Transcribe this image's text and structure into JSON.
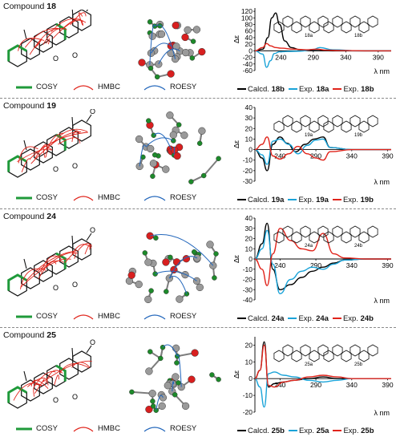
{
  "legend_labels": {
    "cosy": "COSY",
    "hmbc": "HMBC",
    "roesy": "ROESY"
  },
  "colors": {
    "cosy": "#1f9a3a",
    "hmbc": "#e0241b",
    "roesy": "#2266bb",
    "calcd": "#000000",
    "exp_a": "#1aa3d8",
    "exp_b": "#e0241b",
    "atom_c": "#9a9a9a",
    "atom_o": "#d81f1f",
    "atom_h": "#1d8a2a"
  },
  "panels": [
    {
      "prefix": "Compound ",
      "number": "18",
      "cd_legend": [
        {
          "prefix": "Calcd. ",
          "id": "18b"
        },
        {
          "prefix": "Exp. ",
          "id": "18a"
        },
        {
          "prefix": "Exp. ",
          "id": "18b"
        }
      ],
      "inset_labels": [
        "18a",
        "18b"
      ]
    },
    {
      "prefix": "Compound ",
      "number": "19",
      "cd_legend": [
        {
          "prefix": "Calcd. ",
          "id": "19a"
        },
        {
          "prefix": "Exp. ",
          "id": "19a"
        },
        {
          "prefix": "Exp. ",
          "id": "19b"
        }
      ],
      "inset_labels": [
        "19a",
        "19b"
      ]
    },
    {
      "prefix": "Compound ",
      "number": "24",
      "cd_legend": [
        {
          "prefix": "Calcd. ",
          "id": "24a"
        },
        {
          "prefix": "Exp. ",
          "id": "24a"
        },
        {
          "prefix": "Exp. ",
          "id": "24b"
        }
      ],
      "inset_labels": [
        "24a",
        "24b"
      ]
    },
    {
      "prefix": "Compound ",
      "number": "25",
      "cd_legend": [
        {
          "prefix": "Calcd. ",
          "id": "25b"
        },
        {
          "prefix": "Exp. ",
          "id": "25a"
        },
        {
          "prefix": "Exp. ",
          "id": "25b"
        }
      ],
      "inset_labels": [
        "25a",
        "25b"
      ]
    }
  ],
  "chart_data": [
    {
      "type": "line",
      "ylabel": "Δε",
      "xlabel": "λ nm",
      "xlim": [
        200,
        410
      ],
      "ylim": [
        -60,
        130
      ],
      "yticks": [
        -60,
        -40,
        -20,
        0,
        20,
        40,
        60,
        80,
        100,
        120
      ],
      "xticks": [
        240,
        290,
        340,
        390
      ],
      "series": [
        {
          "name": "Calcd. 18b",
          "x": [
            200,
            212,
            220,
            226,
            232,
            238,
            246,
            256,
            270,
            290,
            320,
            360,
            410
          ],
          "y": [
            0,
            5,
            40,
            100,
            115,
            80,
            30,
            10,
            3,
            1,
            0,
            0,
            0
          ]
        },
        {
          "name": "Exp. 18a",
          "x": [
            200,
            212,
            218,
            224,
            230,
            238,
            250,
            270,
            290,
            300,
            320,
            360,
            410
          ],
          "y": [
            0,
            -10,
            -50,
            -30,
            -8,
            -3,
            -2,
            -1,
            4,
            10,
            3,
            0,
            0
          ]
        },
        {
          "name": "Exp. 18b",
          "x": [
            200,
            212,
            218,
            224,
            232,
            240,
            260,
            280,
            295,
            310,
            330,
            370,
            410
          ],
          "y": [
            0,
            10,
            22,
            15,
            10,
            8,
            5,
            3,
            5,
            2,
            1,
            0,
            0
          ]
        }
      ]
    },
    {
      "type": "line",
      "ylabel": "Δε",
      "xlabel": "λ nm",
      "xlim": [
        205,
        395
      ],
      "ylim": [
        -30,
        40
      ],
      "yticks": [
        -30,
        -20,
        -10,
        0,
        10,
        20,
        30,
        40
      ],
      "xticks": [
        240,
        290,
        340,
        390
      ],
      "series": [
        {
          "name": "Calcd. 19a",
          "x": [
            205,
            215,
            222,
            230,
            240,
            250,
            262,
            275,
            288,
            300,
            310,
            340,
            395
          ],
          "y": [
            0,
            -8,
            -20,
            5,
            12,
            6,
            -2,
            5,
            10,
            12,
            2,
            0,
            0
          ]
        },
        {
          "name": "Exp. 19a",
          "x": [
            205,
            215,
            222,
            230,
            240,
            252,
            265,
            278,
            290,
            300,
            310,
            340,
            395
          ],
          "y": [
            0,
            -5,
            -14,
            8,
            10,
            5,
            -4,
            4,
            9,
            10,
            2,
            0,
            0
          ]
        },
        {
          "name": "Exp. 19b",
          "x": [
            205,
            215,
            222,
            230,
            240,
            252,
            265,
            278,
            290,
            300,
            310,
            340,
            395
          ],
          "y": [
            0,
            5,
            12,
            -6,
            -9,
            -4,
            3,
            -4,
            -8,
            -10,
            -2,
            0,
            0
          ]
        }
      ]
    },
    {
      "type": "line",
      "ylabel": "Δε",
      "xlabel": "λ nm",
      "xlim": [
        205,
        395
      ],
      "ylim": [
        -40,
        40
      ],
      "yticks": [
        -40,
        -30,
        -20,
        -10,
        0,
        10,
        20,
        30,
        40
      ],
      "xticks": [
        240,
        290,
        340,
        390
      ],
      "series": [
        {
          "name": "Calcd. 24a",
          "x": [
            205,
            215,
            222,
            230,
            240,
            255,
            270,
            285,
            300,
            315,
            330,
            360,
            395
          ],
          "y": [
            0,
            15,
            35,
            -10,
            -30,
            -25,
            -18,
            -12,
            -8,
            -4,
            -1,
            0,
            0
          ]
        },
        {
          "name": "Exp. 24a",
          "x": [
            205,
            215,
            222,
            230,
            240,
            255,
            270,
            285,
            300,
            315,
            330,
            360,
            395
          ],
          "y": [
            0,
            10,
            28,
            -5,
            -34,
            -20,
            -12,
            -8,
            -10,
            -5,
            -1,
            0,
            0
          ]
        },
        {
          "name": "Exp. 24b",
          "x": [
            205,
            215,
            222,
            230,
            240,
            255,
            270,
            285,
            300,
            315,
            330,
            360,
            395
          ],
          "y": [
            0,
            -10,
            -26,
            5,
            30,
            18,
            10,
            8,
            25,
            5,
            1,
            0,
            0
          ]
        }
      ]
    },
    {
      "type": "line",
      "ylabel": "Δε",
      "xlabel": "λ nm",
      "xlim": [
        205,
        395
      ],
      "ylim": [
        -20,
        25
      ],
      "yticks": [
        -20,
        -10,
        0,
        10,
        20
      ],
      "xticks": [
        240,
        290,
        340,
        390
      ],
      "series": [
        {
          "name": "Calcd. 25b",
          "x": [
            205,
            212,
            218,
            224,
            232,
            245,
            260,
            280,
            300,
            320,
            340,
            370,
            395
          ],
          "y": [
            0,
            5,
            22,
            -5,
            -3,
            -2,
            -1,
            0,
            1,
            0,
            0,
            0,
            0
          ]
        },
        {
          "name": "Exp. 25a",
          "x": [
            205,
            212,
            218,
            224,
            232,
            245,
            260,
            280,
            300,
            320,
            340,
            370,
            395
          ],
          "y": [
            0,
            -5,
            -17,
            3,
            4,
            2,
            1,
            -1,
            -2,
            -1,
            0,
            0,
            0
          ]
        },
        {
          "name": "Exp. 25b",
          "x": [
            205,
            212,
            218,
            224,
            232,
            245,
            260,
            280,
            300,
            320,
            340,
            370,
            395
          ],
          "y": [
            0,
            5,
            20,
            -4,
            -5,
            -2,
            -1,
            1,
            2,
            1,
            0,
            0,
            0
          ]
        }
      ]
    }
  ]
}
